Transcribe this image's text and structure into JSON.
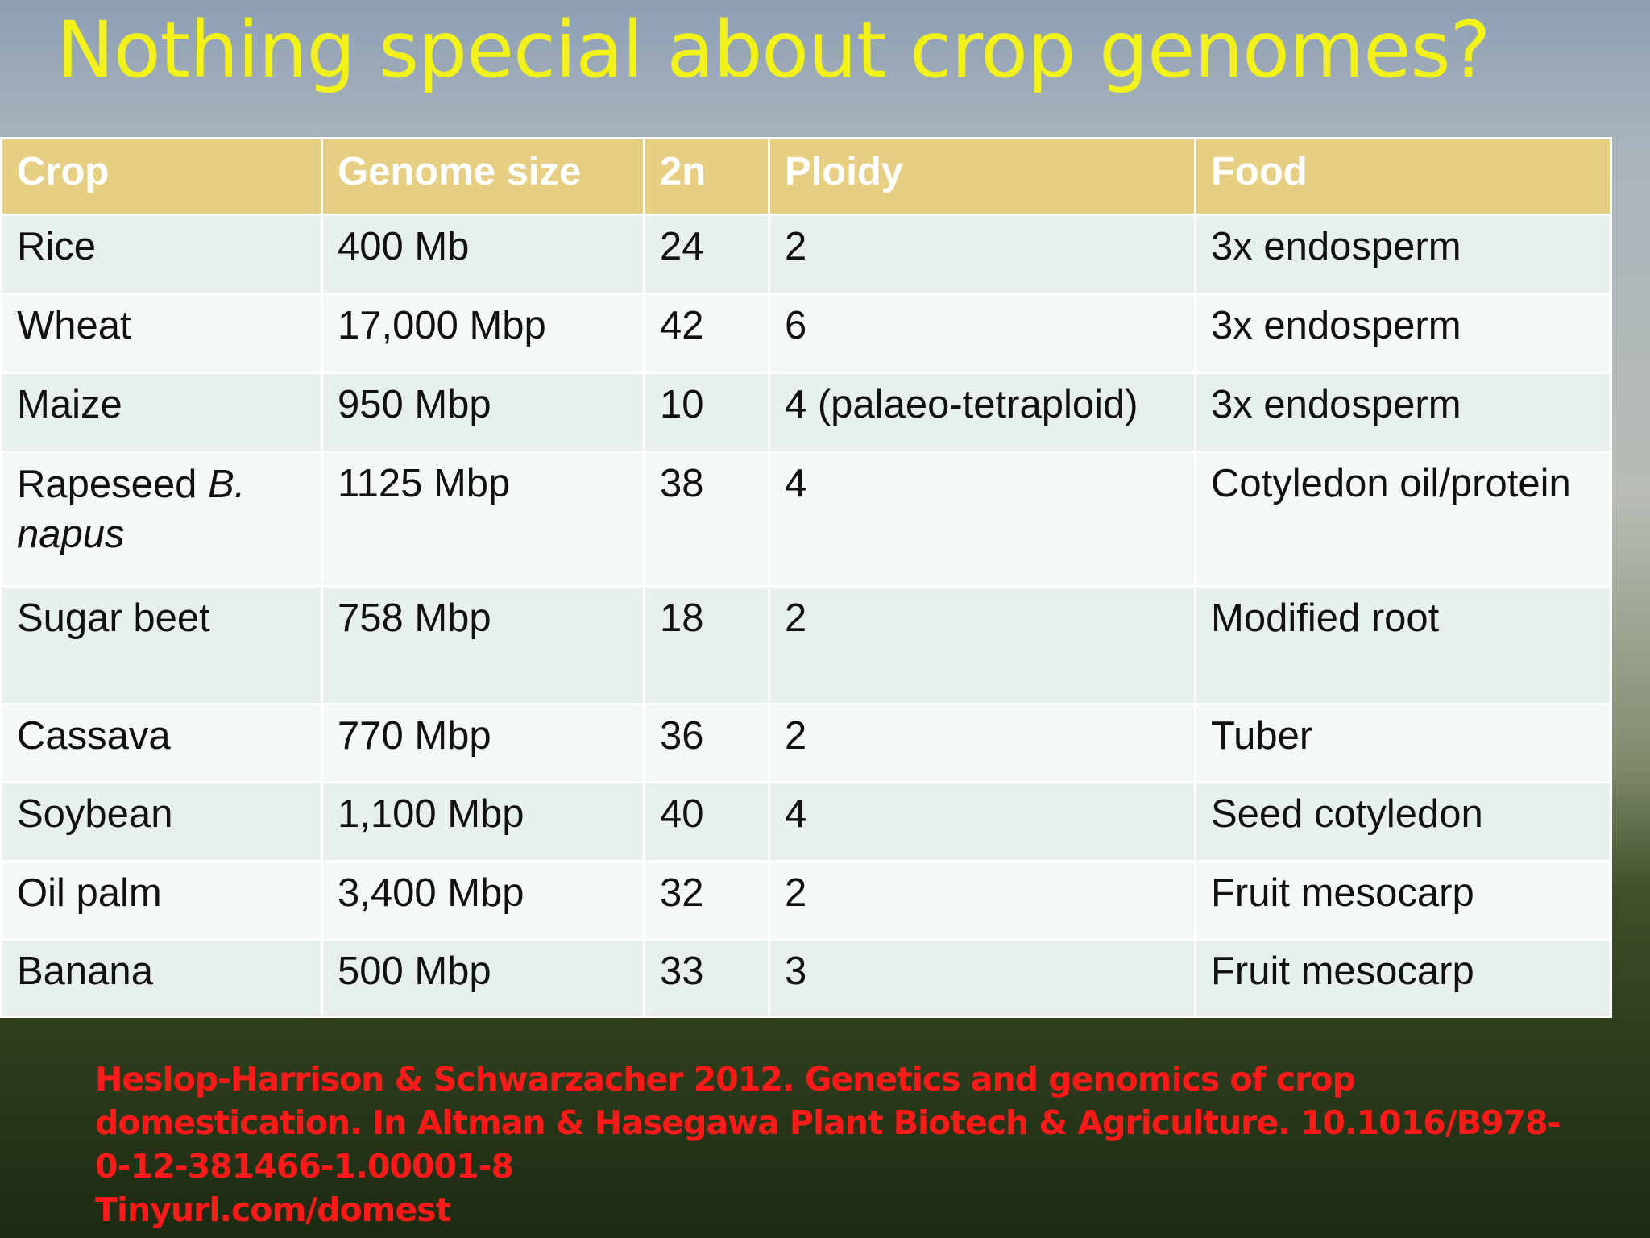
{
  "title": "Nothing special about crop genomes?",
  "table": {
    "header": [
      "Crop",
      "Genome size",
      "2n",
      "Ploidy",
      "Food"
    ],
    "rows": [
      [
        "Rice",
        "400 Mb",
        "24",
        "2",
        "3x endosperm"
      ],
      [
        "Wheat",
        "17,000 Mbp",
        "42",
        "6",
        "3x endosperm"
      ],
      [
        "Maize",
        "950 Mbp",
        "10",
        "4 (palaeo-tetraploid)",
        "3x endosperm"
      ],
      [
        [
          "Rapeseed",
          "B. napus"
        ],
        "1125 Mbp",
        "38",
        "4",
        "Cotyledon oil/protein"
      ],
      [
        "Sugar beet",
        "758 Mbp",
        "18",
        "2",
        "Modified root"
      ],
      [
        "Cassava",
        "770 Mbp",
        "36",
        "2",
        "Tuber"
      ],
      [
        "Soybean",
        "1,100 Mbp",
        "40",
        "4",
        "Seed cotyledon"
      ],
      [
        "Oil palm",
        "3,400 Mbp",
        "32",
        "2",
        "Fruit mesocarp"
      ],
      [
        "Banana",
        "500 Mbp",
        "33",
        "3",
        "Fruit mesocarp"
      ]
    ]
  },
  "citation": [
    "Heslop-Harrison & Schwarzacher 2012. Genetics and genomics of crop",
    "domestication. In Altman & Hasegawa  Plant Biotech & Agriculture. 10.1016/B978-",
    "0-12-381466-1.00001-8",
    "Tinyurl.com/domest"
  ]
}
